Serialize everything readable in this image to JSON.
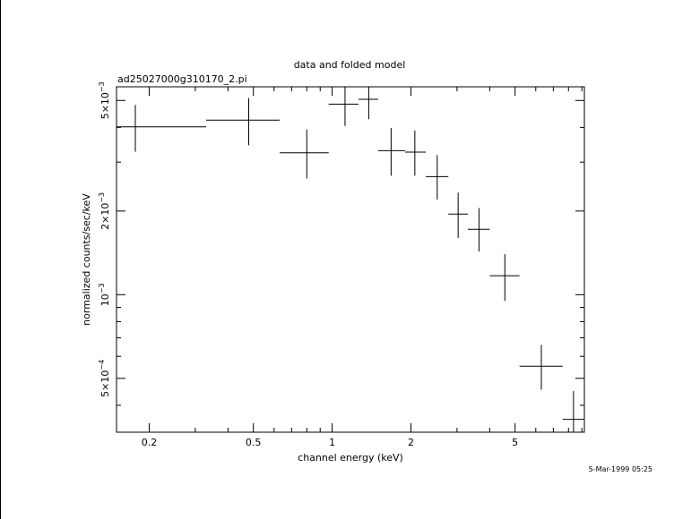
{
  "chart_data": {
    "type": "scatter",
    "title": "data and folded model",
    "subtitle": "ad25027000g310170_2.pi",
    "xlabel": "channel energy (keV)",
    "ylabel": "normalized counts/sec/keV",
    "x_scale": "log",
    "y_scale": "log",
    "xlim": [
      0.15,
      9.2
    ],
    "ylim": [
      0.00032,
      0.0056
    ],
    "x_ticks": [
      {
        "value": 0.2,
        "label": "0.2"
      },
      {
        "value": 0.5,
        "label": "0.5"
      },
      {
        "value": 1,
        "label": "1"
      },
      {
        "value": 2,
        "label": "2"
      },
      {
        "value": 5,
        "label": "5"
      }
    ],
    "y_ticks": [
      {
        "value": 0.0005,
        "mantissa": "5×10",
        "exponent": "−4"
      },
      {
        "value": 0.001,
        "mantissa": "10",
        "exponent": "−3"
      },
      {
        "value": 0.002,
        "mantissa": "2×10",
        "exponent": "−3"
      },
      {
        "value": 0.005,
        "mantissa": "5×10",
        "exponent": "−3"
      }
    ],
    "grid": false,
    "points": [
      {
        "x": 0.177,
        "xlo": 0.15,
        "xhi": 0.33,
        "y": 0.00402,
        "ylo": 0.00327,
        "yhi": 0.00482
      },
      {
        "x": 0.48,
        "xlo": 0.33,
        "xhi": 0.63,
        "y": 0.00425,
        "ylo": 0.00345,
        "yhi": 0.0051
      },
      {
        "x": 0.8,
        "xlo": 0.63,
        "xhi": 0.97,
        "y": 0.00324,
        "ylo": 0.00262,
        "yhi": 0.00393
      },
      {
        "x": 1.12,
        "xlo": 0.97,
        "xhi": 1.26,
        "y": 0.00485,
        "ylo": 0.00405,
        "yhi": 0.00575
      },
      {
        "x": 1.38,
        "xlo": 1.26,
        "xhi": 1.5,
        "y": 0.00505,
        "ylo": 0.00428,
        "yhi": 0.00575
      },
      {
        "x": 1.68,
        "xlo": 1.5,
        "xhi": 1.9,
        "y": 0.0033,
        "ylo": 0.00268,
        "yhi": 0.00398
      },
      {
        "x": 2.07,
        "xlo": 1.9,
        "xhi": 2.28,
        "y": 0.00326,
        "ylo": 0.00268,
        "yhi": 0.0039
      },
      {
        "x": 2.52,
        "xlo": 2.28,
        "xhi": 2.78,
        "y": 0.00266,
        "ylo": 0.0022,
        "yhi": 0.00318
      },
      {
        "x": 3.03,
        "xlo": 2.78,
        "xhi": 3.3,
        "y": 0.00195,
        "ylo": 0.0016,
        "yhi": 0.00233
      },
      {
        "x": 3.64,
        "xlo": 3.3,
        "xhi": 4.0,
        "y": 0.00172,
        "ylo": 0.00143,
        "yhi": 0.00205
      },
      {
        "x": 4.57,
        "xlo": 4.0,
        "xhi": 5.2,
        "y": 0.00117,
        "ylo": 0.00095,
        "yhi": 0.0014
      },
      {
        "x": 6.3,
        "xlo": 5.2,
        "xhi": 7.6,
        "y": 0.000553,
        "ylo": 0.000455,
        "yhi": 0.00066
      },
      {
        "x": 8.36,
        "xlo": 7.6,
        "xhi": 9.2,
        "y": 0.000356,
        "ylo": 0.0003,
        "yhi": 0.00045
      }
    ]
  },
  "footer": {
    "timestamp": "5-Mar-1999 05:25"
  }
}
